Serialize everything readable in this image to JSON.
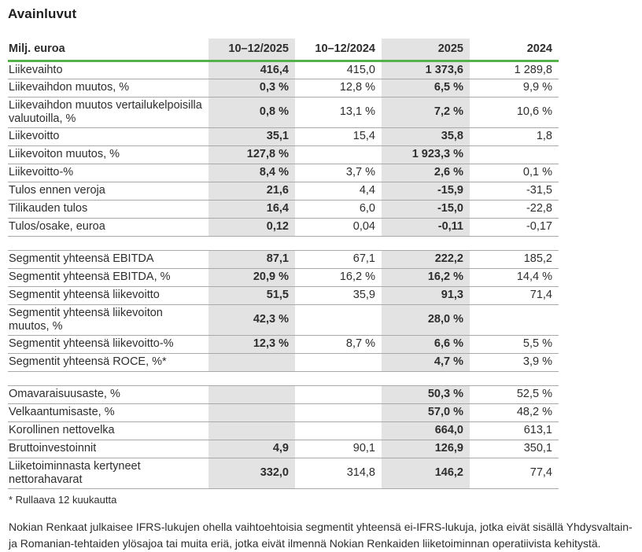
{
  "title": "Avainluvut",
  "table": {
    "headers": [
      "Milj. euroa",
      "10–12/2025",
      "10–12/2024",
      "2025",
      "2024"
    ],
    "shaded_columns": [
      "10–12/2025",
      "2025"
    ],
    "rows": [
      {
        "label": "Liikevaihto",
        "values": [
          "416,4",
          "415,0",
          "1 373,6",
          "1 289,8"
        ]
      },
      {
        "label": "Liikevaihdon muutos, %",
        "values": [
          "0,3 %",
          "12,8 %",
          "6,5 %",
          "9,9 %"
        ]
      },
      {
        "label": "Liikevaihdon muutos vertailukelpoisilla valuutoilla, %",
        "values": [
          "0,8 %",
          "13,1 %",
          "7,2 %",
          "10,6 %"
        ]
      },
      {
        "label": "Liikevoitto",
        "values": [
          "35,1",
          "15,4",
          "35,8",
          "1,8"
        ]
      },
      {
        "label": "Liikevoiton muutos, %",
        "values": [
          "127,8 %",
          "",
          "1 923,3 %",
          ""
        ]
      },
      {
        "label": "Liikevoitto-%",
        "values": [
          "8,4 %",
          "3,7 %",
          "2,6 %",
          "0,1 %"
        ]
      },
      {
        "label": "Tulos ennen veroja",
        "values": [
          "21,6",
          "4,4",
          "-15,9",
          "-31,5"
        ]
      },
      {
        "label": "Tilikauden tulos",
        "values": [
          "16,4",
          "6,0",
          "-15,0",
          "-22,8"
        ]
      },
      {
        "label": "Tulos/osake, euroa",
        "values": [
          "0,12",
          "0,04",
          "-0,11",
          "-0,17"
        ]
      },
      {
        "gap": true
      },
      {
        "label": "Segmentit yhteensä EBITDA",
        "values": [
          "87,1",
          "67,1",
          "222,2",
          "185,2"
        ]
      },
      {
        "label": "Segmentit yhteensä EBITDA, %",
        "values": [
          "20,9 %",
          "16,2 %",
          "16,2 %",
          "14,4 %"
        ]
      },
      {
        "label": "Segmentit yhteensä liikevoitto",
        "values": [
          "51,5",
          "35,9",
          "91,3",
          "71,4"
        ]
      },
      {
        "label": "Segmentit yhteensä liikevoiton muutos, %",
        "values": [
          "42,3 %",
          "",
          "28,0 %",
          ""
        ]
      },
      {
        "label": "Segmentit yhteensä liikevoitto-%",
        "values": [
          "12,3 %",
          "8,7 %",
          "6,6 %",
          "5,5 %"
        ]
      },
      {
        "label": "Segmentit yhteensä ROCE, %*",
        "values": [
          "",
          "",
          "4,7 %",
          "3,9 %"
        ]
      },
      {
        "gap": true
      },
      {
        "label": "Omavaraisuusaste, %",
        "values": [
          "",
          "",
          "50,3 %",
          "52,5 %"
        ]
      },
      {
        "label": "Velkaantumisaste, %",
        "values": [
          "",
          "",
          "57,0 %",
          "48,2 %"
        ]
      },
      {
        "label": "Korollinen nettovelka",
        "values": [
          "",
          "",
          "664,0",
          "613,1"
        ]
      },
      {
        "label": "Bruttoinvestoinnit",
        "values": [
          "4,9",
          "90,1",
          "126,9",
          "350,1"
        ]
      },
      {
        "label": "Liiketoiminnasta kertyneet nettorahavarat",
        "values": [
          "332,0",
          "314,8",
          "146,2",
          "77,4"
        ]
      }
    ],
    "footnote": "* Rullaava 12 kuukautta"
  },
  "note_paragraph": "Nokian Renkaat julkaisee IFRS-lukujen ohella vaihtoehtoisia segmentit yhteensä ei-IFRS-lukuja, jotka eivät sisällä Yhdysvaltain- ja Romanian-tehtaiden ylösajoa tai muita eriä, jotka eivät ilmennä Nokian Renkaiden liiketoiminnan operatiivista kehitystä.",
  "colors": {
    "accent_green": "#55b24b",
    "shaded_column_bg": "#e3e3e3",
    "row_border": "#a9a9a9",
    "text": "#2e2e2e"
  }
}
